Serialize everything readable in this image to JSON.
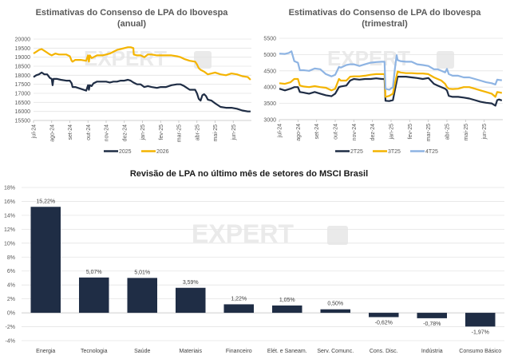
{
  "chart_data": [
    {
      "id": "annual",
      "type": "line",
      "title": [
        "Estimativas do Consenso de LPA do Ibovespa",
        "(anual)"
      ],
      "xlabel": "",
      "ylabel": "",
      "ylim": [
        15500,
        20000
      ],
      "yticks": [
        15500,
        16000,
        16500,
        17000,
        17500,
        18000,
        18500,
        19000,
        19500,
        20000
      ],
      "xtick_labels": [
        "jul-24",
        "ago-24",
        "set-24",
        "out-24",
        "nov-24",
        "dez-24",
        "jan-25",
        "fev-25",
        "mar-25",
        "abr-25",
        "mai-25",
        "jun-25"
      ],
      "x_range_months": [
        0,
        12
      ],
      "grid": true,
      "legend": "bottom",
      "series": [
        {
          "name": "2025",
          "color": "#1f2d45",
          "x": [
            0,
            0.15,
            0.3,
            0.45,
            0.6,
            0.75,
            0.9,
            1.0,
            1.05,
            1.1,
            1.3,
            1.5,
            1.8,
            2.0,
            2.1,
            2.15,
            2.3,
            2.6,
            2.9,
            3.0,
            3.05,
            3.1,
            3.2,
            3.3,
            3.5,
            3.8,
            4.0,
            4.2,
            4.4,
            4.6,
            4.8,
            5.0,
            5.2,
            5.35,
            5.5,
            5.7,
            5.9,
            6.1,
            6.3,
            6.5,
            6.8,
            7.0,
            7.3,
            7.6,
            7.9,
            8.1,
            8.3,
            8.6,
            8.9,
            9.0,
            9.1,
            9.2,
            9.3,
            9.4,
            9.5,
            9.6,
            9.8,
            10.0,
            10.3,
            10.6,
            10.9,
            11.2,
            11.5,
            11.8,
            11.95
          ],
          "y": [
            17900,
            18000,
            18050,
            18150,
            18050,
            18050,
            17850,
            17800,
            17450,
            17800,
            17800,
            17750,
            17700,
            17700,
            17550,
            17350,
            17350,
            17250,
            17150,
            17450,
            17200,
            17450,
            17400,
            17550,
            17650,
            17650,
            17650,
            17600,
            17650,
            17650,
            17700,
            17700,
            17750,
            17700,
            17600,
            17500,
            17500,
            17350,
            17400,
            17350,
            17300,
            17350,
            17350,
            17450,
            17500,
            17500,
            17400,
            17200,
            17200,
            17000,
            16700,
            16600,
            16900,
            16950,
            16850,
            16650,
            16600,
            16450,
            16250,
            16200,
            16200,
            16150,
            16050,
            16000,
            16000
          ]
        },
        {
          "name": "2026",
          "color": "#f4b400",
          "x": [
            0,
            0.15,
            0.3,
            0.45,
            0.6,
            0.75,
            0.9,
            1.0,
            1.2,
            1.4,
            1.6,
            1.8,
            2.0,
            2.1,
            2.15,
            2.3,
            2.6,
            2.9,
            3.0,
            3.05,
            3.1,
            3.2,
            3.3,
            3.5,
            3.8,
            4.0,
            4.2,
            4.4,
            4.6,
            4.8,
            5.0,
            5.2,
            5.35,
            5.5,
            5.52,
            5.7,
            5.9,
            6.1,
            6.3,
            6.5,
            6.8,
            7.0,
            7.3,
            7.6,
            7.9,
            8.1,
            8.3,
            8.6,
            8.9,
            9.0,
            9.1,
            9.2,
            9.4,
            9.6,
            9.8,
            10.0,
            10.3,
            10.6,
            10.9,
            11.2,
            11.5,
            11.8,
            11.95
          ],
          "y": [
            19200,
            19300,
            19400,
            19450,
            19350,
            19250,
            19150,
            19100,
            19200,
            19150,
            19150,
            19150,
            19050,
            18800,
            18750,
            18850,
            18850,
            18800,
            19100,
            18750,
            19100,
            18950,
            19000,
            19100,
            19100,
            19150,
            19200,
            19300,
            19400,
            19450,
            19500,
            19550,
            19550,
            19500,
            19150,
            19100,
            19100,
            19000,
            19150,
            19150,
            19100,
            19100,
            19100,
            19100,
            19050,
            19000,
            18900,
            18800,
            18750,
            18600,
            18400,
            18300,
            18200,
            18050,
            18100,
            18150,
            18050,
            18000,
            18100,
            18050,
            17950,
            17900,
            17750
          ]
        }
      ]
    },
    {
      "id": "quarterly",
      "type": "line",
      "title": [
        "Estimativas do Consenso de LPA do Ibovespa",
        "(trimestral)"
      ],
      "xlabel": "",
      "ylabel": "",
      "ylim": [
        3000,
        5500
      ],
      "yticks": [
        3000,
        3500,
        4000,
        4500,
        5000,
        5500
      ],
      "xtick_labels": [
        "jul-24",
        "ago-24",
        "set-24",
        "out-24",
        "nov-24",
        "dez-24",
        "jan-25",
        "fev-25",
        "mar-25",
        "abr-25",
        "mai-25",
        "jun-25"
      ],
      "x_range_months": [
        0,
        12
      ],
      "grid": true,
      "legend": "bottom",
      "series": [
        {
          "name": "2T25",
          "color": "#1f2d45",
          "x": [
            0,
            0.3,
            0.6,
            0.8,
            1.0,
            1.1,
            1.3,
            1.6,
            1.9,
            2.2,
            2.5,
            2.8,
            3.0,
            3.2,
            3.3,
            3.6,
            3.8,
            4.0,
            4.3,
            4.6,
            4.9,
            5.2,
            5.5,
            5.65,
            5.7,
            5.9,
            6.1,
            6.2,
            6.35,
            6.5,
            6.8,
            7.1,
            7.4,
            7.7,
            8.0,
            8.3,
            8.5,
            8.7,
            8.9,
            9.0,
            9.1,
            9.3,
            9.6,
            9.9,
            10.2,
            10.5,
            10.8,
            11.1,
            11.4,
            11.6,
            11.7,
            11.8,
            11.95
          ],
          "y": [
            3950,
            3900,
            3950,
            4000,
            4000,
            3850,
            3830,
            3800,
            3850,
            3800,
            3750,
            3720,
            3800,
            4000,
            4020,
            4050,
            4200,
            4250,
            4230,
            4250,
            4250,
            4270,
            4250,
            4250,
            3580,
            3570,
            3600,
            3900,
            4320,
            4320,
            4320,
            4300,
            4280,
            4250,
            4280,
            4100,
            4050,
            4000,
            3950,
            3900,
            3730,
            3700,
            3700,
            3680,
            3650,
            3600,
            3550,
            3520,
            3500,
            3430,
            3600,
            3620,
            3590
          ]
        },
        {
          "name": "3T25",
          "color": "#f4b400",
          "x": [
            0,
            0.3,
            0.6,
            0.8,
            1.0,
            1.1,
            1.3,
            1.6,
            1.9,
            2.2,
            2.5,
            2.8,
            3.0,
            3.2,
            3.3,
            3.6,
            3.8,
            4.0,
            4.3,
            4.6,
            4.9,
            5.2,
            5.5,
            5.65,
            5.7,
            5.9,
            6.1,
            6.2,
            6.35,
            6.5,
            6.8,
            7.1,
            7.4,
            7.7,
            8.0,
            8.3,
            8.5,
            8.7,
            8.9,
            9.0,
            9.1,
            9.3,
            9.6,
            9.9,
            10.2,
            10.5,
            10.8,
            11.1,
            11.4,
            11.6,
            11.7,
            11.8,
            11.95
          ],
          "y": [
            4120,
            4100,
            4150,
            4250,
            4250,
            4050,
            4020,
            4000,
            4030,
            4000,
            3980,
            3900,
            3950,
            4250,
            4200,
            4200,
            4320,
            4330,
            4330,
            4350,
            4380,
            4400,
            4400,
            4400,
            3700,
            3730,
            3800,
            4100,
            4480,
            4450,
            4430,
            4430,
            4420,
            4420,
            4400,
            4300,
            4250,
            4200,
            4100,
            4000,
            3950,
            3940,
            3950,
            4000,
            4000,
            3950,
            3900,
            3850,
            3800,
            3700,
            3850,
            3840,
            3820
          ]
        },
        {
          "name": "4T25",
          "color": "#8eb4e3",
          "x": [
            0,
            0.3,
            0.5,
            0.65,
            0.8,
            1.0,
            1.1,
            1.3,
            1.6,
            1.9,
            2.2,
            2.5,
            2.8,
            3.0,
            3.2,
            3.3,
            3.6,
            3.8,
            4.0,
            4.3,
            4.6,
            4.9,
            5.2,
            5.5,
            5.65,
            5.7,
            5.9,
            6.1,
            6.2,
            6.3,
            6.35,
            6.5,
            6.8,
            7.1,
            7.4,
            7.7,
            8.0,
            8.3,
            8.5,
            8.7,
            8.9,
            9.0,
            9.1,
            9.3,
            9.6,
            9.9,
            10.2,
            10.5,
            10.8,
            11.1,
            11.4,
            11.6,
            11.7,
            11.8,
            11.95
          ],
          "y": [
            5030,
            5020,
            5050,
            5100,
            4800,
            4750,
            4520,
            4520,
            4500,
            4570,
            4550,
            4400,
            4330,
            4380,
            4620,
            4600,
            4680,
            4700,
            4700,
            4650,
            4700,
            4750,
            4770,
            4780,
            4780,
            3950,
            3920,
            4000,
            4550,
            4980,
            4830,
            4800,
            4780,
            4780,
            4700,
            4680,
            4650,
            4550,
            4550,
            4500,
            4450,
            4560,
            4400,
            4350,
            4350,
            4300,
            4300,
            4250,
            4200,
            4150,
            4120,
            4080,
            4230,
            4220,
            4210
          ]
        }
      ]
    },
    {
      "id": "sectors",
      "type": "bar",
      "title": "Revisão de LPA no último mês de setores do MSCI Brasil",
      "xlabel": "",
      "ylabel": "",
      "ylim": [
        -4,
        18
      ],
      "yticks": [
        -4,
        -2,
        0,
        2,
        4,
        6,
        8,
        10,
        12,
        14,
        16,
        18
      ],
      "ytick_labels": [
        "-4%",
        "-2%",
        "0%",
        "2%",
        "4%",
        "6%",
        "8%",
        "10%",
        "12%",
        "14%",
        "16%",
        "18%"
      ],
      "grid": true,
      "legend": "none",
      "bar_color": "#1f2d45",
      "categories": [
        "Energia",
        "Tecnologia",
        "Saúde",
        "Materiais",
        "Financeiro",
        "Elét. e Saneam.",
        "Serv. Comunc.",
        "Cons. Disc.",
        "Indústria",
        "Consumo Básico"
      ],
      "values": [
        15.22,
        5.07,
        5.01,
        3.59,
        1.22,
        1.05,
        0.5,
        -0.62,
        -0.78,
        -1.97
      ],
      "data_labels": [
        "15,22%",
        "5,07%",
        "5,01%",
        "3,59%",
        "1,22%",
        "1,05%",
        "0,50%",
        "-0,62%",
        "-0,78%",
        "-1,97%"
      ]
    }
  ],
  "watermark": {
    "text": "EXPERT",
    "badge": "XP"
  }
}
